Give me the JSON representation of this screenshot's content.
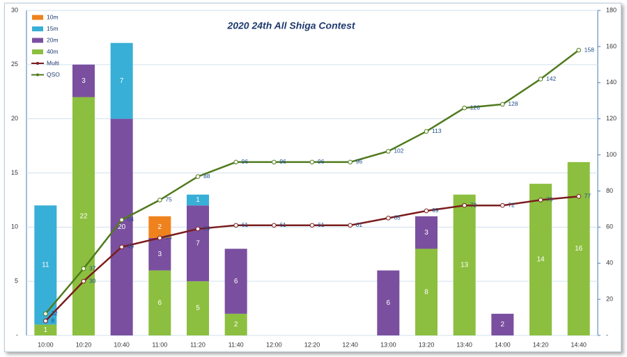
{
  "chart_data": {
    "type": "bar",
    "stacked": true,
    "title": "2020 24th All Shiga Contest",
    "categories": [
      "10:00",
      "10:20",
      "10:40",
      "11:00",
      "11:20",
      "11:40",
      "12:00",
      "12:20",
      "12:40",
      "13:00",
      "13:20",
      "13:40",
      "14:00",
      "14:20",
      "14:40"
    ],
    "series": [
      {
        "name": "40m",
        "color": "#8cbf3f",
        "values": [
          1,
          22,
          null,
          6,
          5,
          2,
          null,
          null,
          null,
          null,
          8,
          13,
          null,
          14,
          16
        ]
      },
      {
        "name": "20m",
        "color": "#7a4f9f",
        "values": [
          null,
          3,
          20,
          3,
          7,
          6,
          null,
          null,
          null,
          6,
          3,
          null,
          2,
          null,
          null
        ]
      },
      {
        "name": "15m",
        "color": "#38afd6",
        "values": [
          11,
          null,
          7,
          null,
          1,
          null,
          null,
          null,
          null,
          null,
          null,
          null,
          null,
          null,
          null
        ]
      },
      {
        "name": "10m",
        "color": "#f0821e",
        "values": [
          null,
          null,
          null,
          2,
          null,
          null,
          null,
          null,
          null,
          null,
          null,
          null,
          null,
          null,
          null
        ]
      },
      {
        "name": "Multi",
        "type": "line",
        "axis": "y2",
        "color": "#7b1c1c",
        "values": [
          8,
          30,
          49,
          54,
          59,
          61,
          61,
          61,
          61,
          65,
          69,
          72,
          72,
          75,
          77
        ]
      },
      {
        "name": "QSO",
        "type": "line",
        "axis": "y2",
        "color": "#4f7a1c",
        "values": [
          12,
          37,
          64,
          75,
          88,
          96,
          96,
          96,
          96,
          102,
          113,
          126,
          128,
          142,
          158
        ]
      }
    ],
    "ylim": [
      0,
      30
    ],
    "yticks": [
      {
        "value": 0,
        "label": "-"
      },
      5,
      10,
      15,
      20,
      25,
      30
    ],
    "y2lim": [
      0,
      180
    ],
    "y2ticks": [
      {
        "value": 0,
        "label": "-"
      },
      20,
      40,
      60,
      80,
      100,
      120,
      140,
      160,
      180
    ],
    "grid": true,
    "legend": "top-left"
  }
}
